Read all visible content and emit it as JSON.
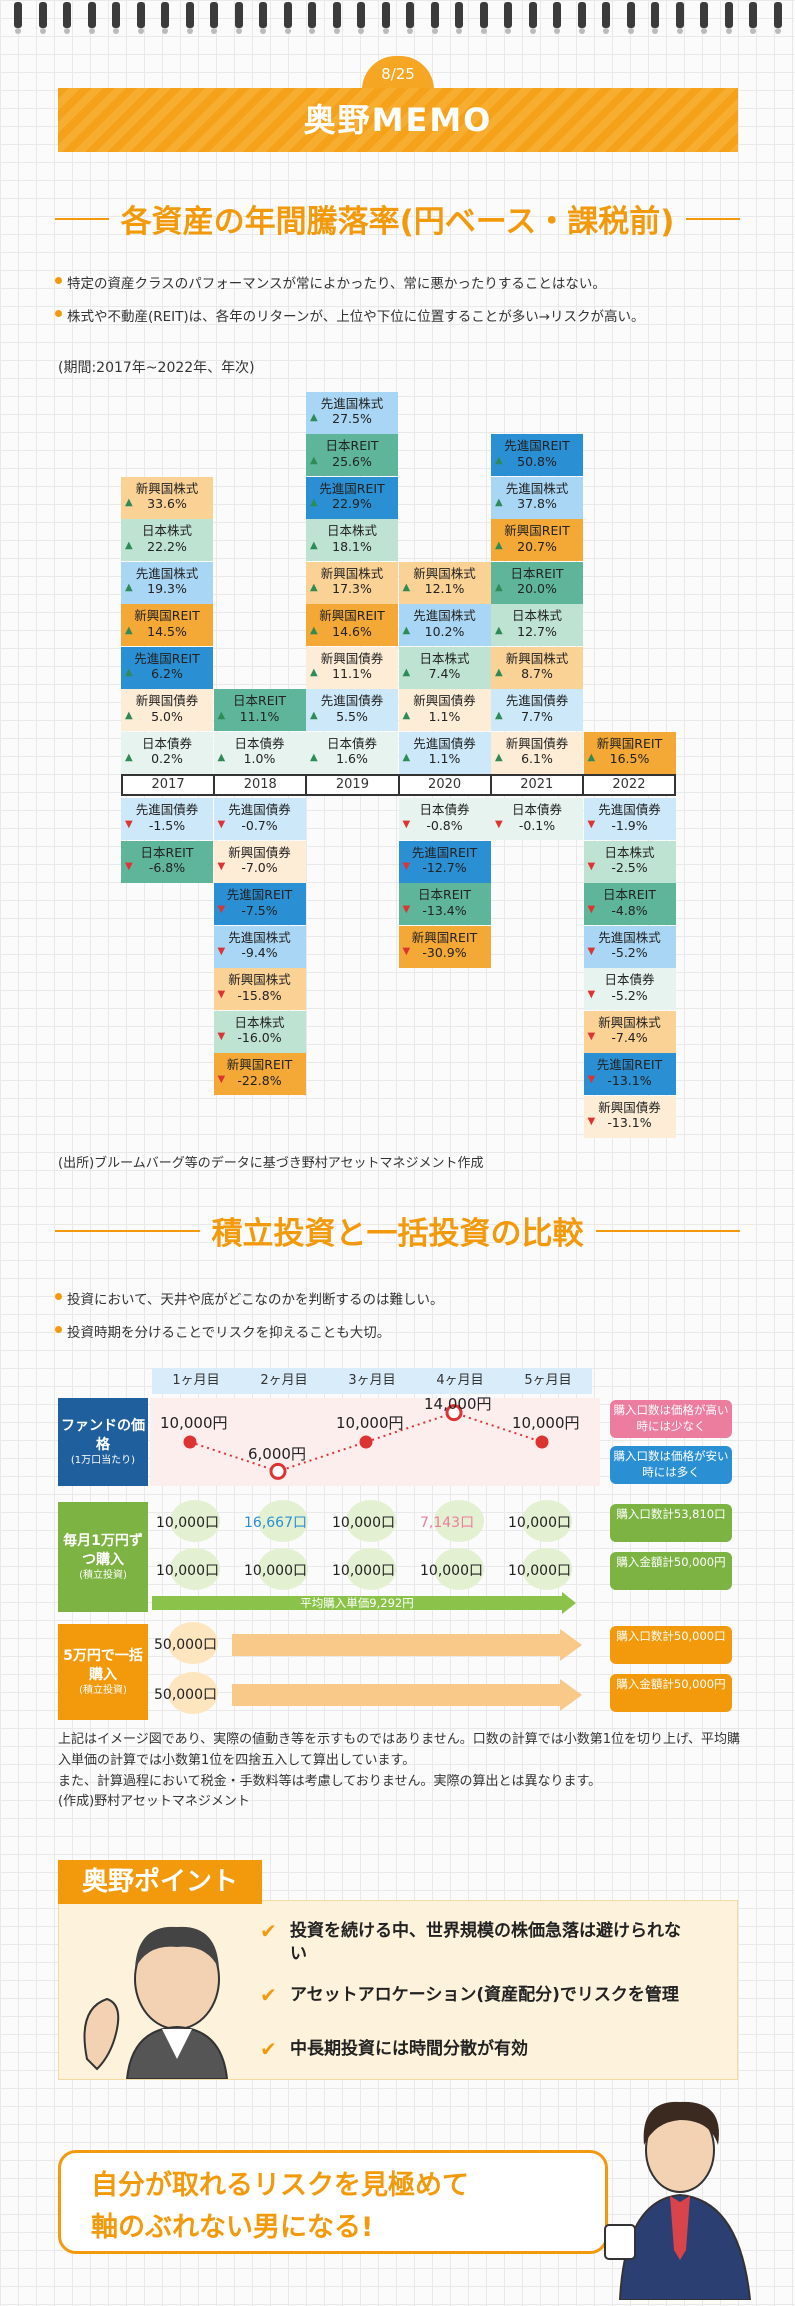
{
  "page_number": "8/25",
  "memo_title": "奥野MEMO",
  "section1": {
    "title": "各資産の年間騰落率(円ベース・課税前)",
    "bullets": [
      "特定の資産クラスのパフォーマンスが常によかったり、常に悪かったりすることはない。",
      "株式や不動産(REIT)は、各年のリターンが、上位や下位に位置することが多い→リスクが高い。"
    ],
    "period": "(期間:2017年~2022年、年次)",
    "source": "(出所)ブルームバーグ等のデータに基づき野村アセットマネジメント作成"
  },
  "colors": {
    "accent": "#f29a0c",
    "asset_colors": {
      "先進国株式": "#a9d6f4",
      "日本REIT": "#5fb59a",
      "先進国REIT": "#2b8fd3",
      "日本株式": "#bfe3d2",
      "新興国株式": "#fbd296",
      "新興国REIT": "#f4a937",
      "新興国債券": "#fdecd6",
      "日本債券": "#e6f3ee",
      "先進国債券": "#cde8f8"
    }
  },
  "chart_data": {
    "type": "table",
    "years": [
      "2017",
      "2018",
      "2019",
      "2020",
      "2021",
      "2022"
    ],
    "columns": [
      {
        "year": "2017",
        "entries": [
          {
            "asset": "新興国株式",
            "value": 33.6,
            "label": "33.6%"
          },
          {
            "asset": "日本株式",
            "value": 22.2,
            "label": "22.2%"
          },
          {
            "asset": "先進国株式",
            "value": 19.3,
            "label": "19.3%"
          },
          {
            "asset": "新興国REIT",
            "value": 14.5,
            "label": "14.5%"
          },
          {
            "asset": "先進国REIT",
            "value": 6.2,
            "label": "6.2%"
          },
          {
            "asset": "新興国債券",
            "value": 5.0,
            "label": "5.0%"
          },
          {
            "asset": "日本債券",
            "value": 0.2,
            "label": "0.2%"
          },
          {
            "asset": "先進国債券",
            "value": -1.5,
            "label": "-1.5%"
          },
          {
            "asset": "日本REIT",
            "value": -6.8,
            "label": "-6.8%"
          }
        ]
      },
      {
        "year": "2018",
        "entries": [
          {
            "asset": "日本REIT",
            "value": 11.1,
            "label": "11.1%"
          },
          {
            "asset": "日本債券",
            "value": 1.0,
            "label": "1.0%"
          },
          {
            "asset": "先進国債券",
            "value": -0.7,
            "label": "-0.7%"
          },
          {
            "asset": "新興国債券",
            "value": -7.0,
            "label": "-7.0%"
          },
          {
            "asset": "先進国REIT",
            "value": -7.5,
            "label": "-7.5%"
          },
          {
            "asset": "先進国株式",
            "value": -9.4,
            "label": "-9.4%"
          },
          {
            "asset": "新興国株式",
            "value": -15.8,
            "label": "-15.8%"
          },
          {
            "asset": "日本株式",
            "value": -16.0,
            "label": "-16.0%"
          },
          {
            "asset": "新興国REIT",
            "value": -22.8,
            "label": "-22.8%"
          }
        ]
      },
      {
        "year": "2019",
        "entries": [
          {
            "asset": "先進国株式",
            "value": 27.5,
            "label": "27.5%"
          },
          {
            "asset": "日本REIT",
            "value": 25.6,
            "label": "25.6%"
          },
          {
            "asset": "先進国REIT",
            "value": 22.9,
            "label": "22.9%"
          },
          {
            "asset": "日本株式",
            "value": 18.1,
            "label": "18.1%"
          },
          {
            "asset": "新興国株式",
            "value": 17.3,
            "label": "17.3%"
          },
          {
            "asset": "新興国REIT",
            "value": 14.6,
            "label": "14.6%"
          },
          {
            "asset": "新興国債券",
            "value": 11.1,
            "label": "11.1%"
          },
          {
            "asset": "先進国債券",
            "value": 5.5,
            "label": "5.5%"
          },
          {
            "asset": "日本債券",
            "value": 1.6,
            "label": "1.6%"
          }
        ]
      },
      {
        "year": "2020",
        "entries": [
          {
            "asset": "新興国株式",
            "value": 12.1,
            "label": "12.1%"
          },
          {
            "asset": "先進国株式",
            "value": 10.2,
            "label": "10.2%"
          },
          {
            "asset": "日本株式",
            "value": 7.4,
            "label": "7.4%"
          },
          {
            "asset": "新興国債券",
            "value": 1.1,
            "label": "1.1%"
          },
          {
            "asset": "先進国債券",
            "value": 1.1,
            "label": "1.1%"
          },
          {
            "asset": "日本債券",
            "value": -0.8,
            "label": "-0.8%"
          },
          {
            "asset": "先進国REIT",
            "value": -12.7,
            "label": "-12.7%"
          },
          {
            "asset": "日本REIT",
            "value": -13.4,
            "label": "-13.4%"
          },
          {
            "asset": "新興国REIT",
            "value": -30.9,
            "label": "-30.9%"
          }
        ]
      },
      {
        "year": "2021",
        "entries": [
          {
            "asset": "先進国REIT",
            "value": 50.8,
            "label": "50.8%"
          },
          {
            "asset": "先進国株式",
            "value": 37.8,
            "label": "37.8%"
          },
          {
            "asset": "新興国REIT",
            "value": 20.7,
            "label": "20.7%"
          },
          {
            "asset": "日本REIT",
            "value": 20.0,
            "label": "20.0%"
          },
          {
            "asset": "日本株式",
            "value": 12.7,
            "label": "12.7%"
          },
          {
            "asset": "新興国株式",
            "value": 8.7,
            "label": "8.7%"
          },
          {
            "asset": "先進国債券",
            "value": 7.7,
            "label": "7.7%"
          },
          {
            "asset": "新興国債券",
            "value": 6.1,
            "label": "6.1%"
          },
          {
            "asset": "日本債券",
            "value": -0.1,
            "label": "-0.1%"
          }
        ]
      },
      {
        "year": "2022",
        "entries": [
          {
            "asset": "新興国REIT",
            "value": 16.5,
            "label": "16.5%"
          },
          {
            "asset": "先進国債券",
            "value": -1.9,
            "label": "-1.9%"
          },
          {
            "asset": "日本株式",
            "value": -2.5,
            "label": "-2.5%"
          },
          {
            "asset": "日本REIT",
            "value": -4.8,
            "label": "-4.8%"
          },
          {
            "asset": "先進国株式",
            "value": -5.2,
            "label": "-5.2%"
          },
          {
            "asset": "日本債券",
            "value": -5.2,
            "label": "-5.2%"
          },
          {
            "asset": "新興国株式",
            "value": -7.4,
            "label": "-7.4%"
          },
          {
            "asset": "先進国REIT",
            "value": -13.1,
            "label": "-13.1%"
          },
          {
            "asset": "新興国債券",
            "value": -13.1,
            "label": "-13.1%"
          }
        ]
      }
    ]
  },
  "section2": {
    "title": "積立投資と一括投資の比較",
    "bullets": [
      "投資において、天井や底がどこなのかを判断するのは難しい。",
      "投資時期を分けることでリスクを抑えることも大切。"
    ],
    "months": [
      "1ヶ月目",
      "2ヶ月目",
      "3ヶ月目",
      "4ヶ月目",
      "5ヶ月目"
    ],
    "fund_label": "ファンドの価格",
    "fund_sub": "(1万口当たり)",
    "prices": [
      "10,000円",
      "6,000円",
      "10,000円",
      "14,000円",
      "10,000円"
    ],
    "price_values": [
      10000,
      6000,
      10000,
      14000,
      10000
    ],
    "tag_high": "購入口数は価格が高い時には少なく",
    "tag_low": "購入口数は価格が安い時には多く",
    "monthly_label": "毎月1万円ずつ購入",
    "monthly_sub": "(積立投資)",
    "monthly_units": [
      "10,000口",
      "16,667口",
      "10,000口",
      "7,143口",
      "10,000口"
    ],
    "monthly_amounts": [
      "10,000口",
      "10,000口",
      "10,000口",
      "10,000口",
      "10,000口"
    ],
    "monthly_total_units": "購入口数計53,810口",
    "monthly_total_amount": "購入金額計50,000円",
    "avg_price": "平均購入単価9,292円",
    "lump_label": "5万円で一括購入",
    "lump_sub": "(積立投資)",
    "lump_units": "50,000口",
    "lump_amount": "50,000口",
    "lump_total_units": "購入口数計50,000口",
    "lump_total_amount": "購入金額計50,000円",
    "note_lines": [
      "上記はイメージ図であり、実際の値動き等を示すものではありません。口数の計算では小数第1位を切り上げ、平均購入単価の計算では小数第1位を四捨五入して算出しています。",
      "また、計算過程において税金・手数料等は考慮しておりません。実際の算出とは異なります。",
      "(作成)野村アセットマネジメント"
    ]
  },
  "point": {
    "title": "奥野ポイント",
    "items": [
      "投資を続ける中、世界規模の株価急落は避けられない",
      "アセットアロケーション(資産配分)でリスクを管理",
      "中長期投資には時間分散が有効"
    ]
  },
  "closing": {
    "line1": "自分が取れるリスクを見極めて",
    "line2": "軸のぶれない男になる!"
  }
}
